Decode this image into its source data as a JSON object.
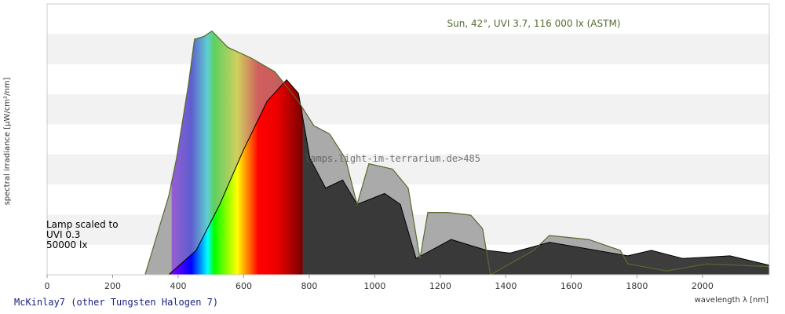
{
  "chart_data": {
    "type": "line",
    "title": "McKinlay7 (other Tungsten Halogen 7)",
    "xlabel": "wavelength λ [nm]",
    "ylabel": "spectral irradiance [µW/cm²/nm]",
    "annotations": [
      "Sun, 42°, UVI 3.7, 116 000 lx (ASTM)",
      "Lamp scaled to",
      "UVI 0.3",
      "50000 lx",
      "lamps.light-im-terrarium.de>485"
    ],
    "xlim": [
      0,
      2204
    ],
    "ylim": [
      0,
      100
    ],
    "xticks": [
      0,
      200,
      400,
      600,
      800,
      1000,
      1200,
      1400,
      1600,
      1800,
      2000
    ],
    "series": [
      {
        "color": "#556b2f",
        "x": [
          299,
          335,
          371,
          395,
          431,
          450,
          479,
          503,
          551,
          623,
          695,
          767,
          814,
          862,
          910,
          946,
          982,
          1054,
          1102,
          1138,
          1162,
          1222,
          1293,
          1329,
          1353,
          1485,
          1533,
          1653,
          1749,
          1772,
          1892,
          2012,
          2204
        ],
        "values": [
          0,
          14.5,
          29,
          43,
          70,
          87,
          88,
          90,
          84,
          80,
          75,
          64,
          55,
          52,
          43,
          26,
          41,
          39,
          32,
          6,
          23,
          23,
          22,
          17,
          0,
          9,
          14.5,
          13,
          9,
          4,
          1.4,
          4,
          3
        ]
      },
      {
        "color": "#333333",
        "x": [
          371,
          455,
          527,
          599,
          671,
          731,
          767,
          802,
          850,
          902,
          946,
          1030,
          1078,
          1126,
          1233,
          1341,
          1413,
          1533,
          1772,
          1844,
          1940,
          2084,
          2204
        ],
        "values": [
          0,
          9,
          26,
          46,
          64,
          72,
          67,
          43,
          32,
          35,
          26,
          30,
          26,
          6,
          13,
          9,
          8,
          12,
          7,
          9,
          6,
          7,
          3.5
        ]
      }
    ]
  }
}
